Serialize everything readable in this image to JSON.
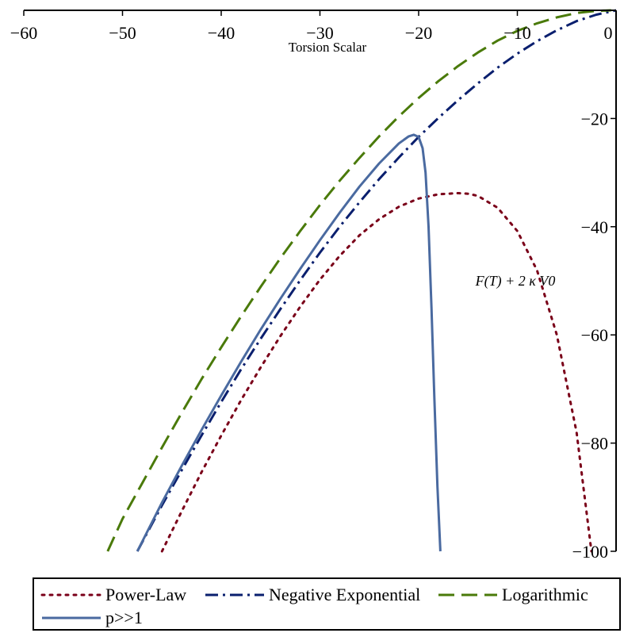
{
  "colors": {
    "power_law": "#7a0019",
    "negative_exponential": "#0a1f6e",
    "logarithmic": "#4a7a0a",
    "p_large": "#4a6aa0",
    "axis": "#000000"
  },
  "chart_data": {
    "type": "line",
    "xlabel": "Torsion Scalar",
    "ylabel": "F(T) + 2 κ V0",
    "xlim": [
      -60,
      0
    ],
    "ylim": [
      -100,
      0
    ],
    "x_ticks": [
      -60,
      -50,
      -40,
      -30,
      -20,
      -10,
      0
    ],
    "x_tick_labels": [
      "−60",
      "−50",
      "−40",
      "−30",
      "−20",
      "−10",
      "0"
    ],
    "y_ticks": [
      -20,
      -40,
      -60,
      -80,
      -100
    ],
    "y_tick_labels": [
      "−20",
      "−40",
      "−60",
      "−80",
      "−100"
    ],
    "legend_position": "bottom",
    "series": [
      {
        "name": "Power-Law",
        "style": "dotted",
        "x": [
          -46,
          -44,
          -42,
          -40,
          -38,
          -36,
          -34,
          -32,
          -30,
          -28,
          -26,
          -24,
          -22,
          -20,
          -18,
          -16,
          -15,
          -14,
          -12,
          -10,
          -8,
          -6,
          -4,
          -2.5
        ],
        "y": [
          -100,
          -92.6,
          -85.4,
          -78.6,
          -72.1,
          -66.0,
          -60.2,
          -54.8,
          -49.8,
          -45.4,
          -41.6,
          -38.6,
          -36.3,
          -34.8,
          -34.0,
          -33.8,
          -33.9,
          -34.3,
          -36.5,
          -40.8,
          -48.1,
          -60.0,
          -78.0,
          -100
        ]
      },
      {
        "name": "Negative Exponential",
        "style": "dashdot",
        "x": [
          -48.5,
          -46,
          -44,
          -42,
          -40,
          -38,
          -36,
          -34,
          -32,
          -30,
          -28,
          -26,
          -24,
          -22,
          -20,
          -18,
          -16,
          -14,
          -12,
          -10,
          -8,
          -6,
          -4,
          -2,
          0
        ],
        "y": [
          -100,
          -91.5,
          -85.0,
          -78.6,
          -72.4,
          -66.4,
          -60.7,
          -55.2,
          -49.9,
          -44.8,
          -40.0,
          -35.5,
          -31.2,
          -27.2,
          -23.4,
          -19.9,
          -16.6,
          -13.5,
          -10.6,
          -8.0,
          -5.7,
          -3.7,
          -2.0,
          -0.8,
          0
        ]
      },
      {
        "name": "Logarithmic",
        "style": "dashed",
        "x": [
          -51.5,
          -50,
          -48,
          -46,
          -44,
          -42,
          -40,
          -38,
          -36,
          -34,
          -32,
          -30,
          -28,
          -26,
          -24,
          -22,
          -20,
          -18,
          -16,
          -14,
          -12,
          -10,
          -8,
          -6,
          -4,
          -2,
          -0.5
        ],
        "y": [
          -100,
          -94.0,
          -87.4,
          -80.8,
          -74.4,
          -68.2,
          -62.3,
          -56.6,
          -51.1,
          -45.8,
          -40.8,
          -36.0,
          -31.5,
          -27.3,
          -23.3,
          -19.6,
          -16.2,
          -13.1,
          -10.3,
          -7.8,
          -5.6,
          -3.8,
          -2.4,
          -1.3,
          -0.5,
          -0.1,
          0
        ]
      },
      {
        "name": "p>>1",
        "style": "solid",
        "x": [
          -48.5,
          -46,
          -44,
          -42,
          -40,
          -38,
          -36,
          -34,
          -32,
          -30,
          -28,
          -26,
          -24,
          -22,
          -21,
          -20.5,
          -20,
          -19.6,
          -19.3,
          -19.0,
          -18.7,
          -18.4,
          -18.1,
          -17.8
        ],
        "y": [
          -100,
          -91.0,
          -84.2,
          -77.6,
          -71.2,
          -65.0,
          -59.0,
          -53.3,
          -47.8,
          -42.5,
          -37.4,
          -32.6,
          -28.3,
          -24.6,
          -23.3,
          -23.0,
          -23.4,
          -25.5,
          -30.0,
          -40.0,
          -55.0,
          -72.0,
          -88.0,
          -100
        ]
      }
    ]
  },
  "legend": {
    "items": [
      {
        "label": "Power-Law"
      },
      {
        "label": "Negative Exponential"
      },
      {
        "label": "Logarithmic"
      },
      {
        "label": "p>>1"
      }
    ]
  }
}
